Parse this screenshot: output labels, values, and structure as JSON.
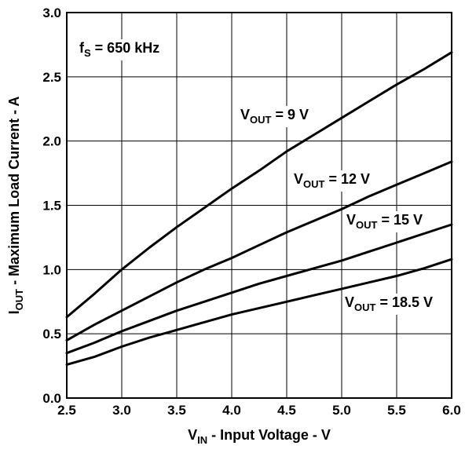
{
  "chart_data": {
    "type": "line",
    "title": "",
    "xlabel": {
      "main": "V",
      "sub": "IN",
      "rest": " - Input Voltage - V"
    },
    "ylabel": {
      "main": "I",
      "sub": "OUT",
      "rest": " - Maximum Load Current - A"
    },
    "xlim": [
      2.5,
      6.0
    ],
    "ylim": [
      0.0,
      3.0
    ],
    "x_ticks": [
      "2.5",
      "3.0",
      "3.5",
      "4.0",
      "4.5",
      "5.0",
      "5.5",
      "6.0"
    ],
    "y_ticks": [
      "0.0",
      "0.5",
      "1.0",
      "1.5",
      "2.0",
      "2.5",
      "3.0"
    ],
    "grid": true,
    "annotation": {
      "main": "f",
      "sub": "S",
      "rest": " = 650 kHz"
    },
    "series": [
      {
        "name": "9 V",
        "label": {
          "main": "V",
          "sub": "OUT",
          "rest": " = 9 V"
        },
        "x": [
          2.5,
          2.75,
          3.0,
          3.25,
          3.5,
          3.75,
          4.0,
          4.25,
          4.5,
          4.75,
          5.0,
          5.25,
          5.5,
          5.75,
          6.0
        ],
        "y": [
          0.63,
          0.81,
          1.0,
          1.17,
          1.33,
          1.48,
          1.63,
          1.77,
          1.92,
          2.05,
          2.18,
          2.31,
          2.44,
          2.56,
          2.69
        ]
      },
      {
        "name": "12 V",
        "label": {
          "main": "V",
          "sub": "OUT",
          "rest": " = 12 V"
        },
        "x": [
          2.5,
          2.75,
          3.0,
          3.25,
          3.5,
          3.75,
          4.0,
          4.25,
          4.5,
          4.75,
          5.0,
          5.25,
          5.5,
          5.75,
          6.0
        ],
        "y": [
          0.45,
          0.57,
          0.68,
          0.79,
          0.9,
          1.0,
          1.09,
          1.19,
          1.29,
          1.38,
          1.47,
          1.57,
          1.66,
          1.75,
          1.84
        ]
      },
      {
        "name": "15 V",
        "label": {
          "main": "V",
          "sub": "OUT",
          "rest": " = 15 V"
        },
        "x": [
          2.5,
          2.75,
          3.0,
          3.25,
          3.5,
          3.75,
          4.0,
          4.25,
          4.5,
          4.75,
          5.0,
          5.25,
          5.5,
          5.75,
          6.0
        ],
        "y": [
          0.35,
          0.43,
          0.52,
          0.6,
          0.68,
          0.75,
          0.82,
          0.89,
          0.95,
          1.01,
          1.07,
          1.14,
          1.21,
          1.28,
          1.35
        ]
      },
      {
        "name": "18.5 V",
        "label": {
          "main": "V",
          "sub": "OUT",
          "rest": " = 18.5 V"
        },
        "x": [
          2.5,
          2.75,
          3.0,
          3.25,
          3.5,
          3.75,
          4.0,
          4.25,
          4.5,
          4.75,
          5.0,
          5.25,
          5.5,
          5.75,
          6.0
        ],
        "y": [
          0.26,
          0.32,
          0.4,
          0.47,
          0.53,
          0.59,
          0.65,
          0.7,
          0.75,
          0.8,
          0.85,
          0.9,
          0.95,
          1.01,
          1.08
        ]
      }
    ]
  }
}
